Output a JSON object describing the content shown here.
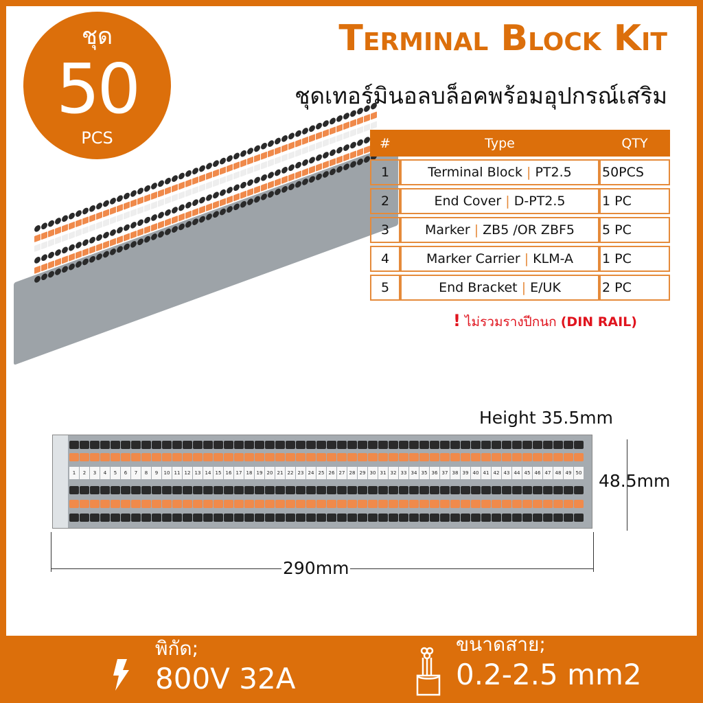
{
  "badge": {
    "thai": "ชุด",
    "count": "50",
    "unit": "PCS"
  },
  "title": "Terminal Block Kit",
  "subtitle": "ชุดเทอร์มินอลบล็อคพร้อมอุปกรณ์เสริม",
  "table": {
    "headers": [
      "#",
      "Type",
      "QTY"
    ],
    "rows": [
      {
        "n": "1",
        "name": "Terminal Block",
        "code": "PT2.5",
        "qty": "50PCS"
      },
      {
        "n": "2",
        "name": "End Cover",
        "code": "D-PT2.5",
        "qty": "1 PC"
      },
      {
        "n": "3",
        "name": "Marker",
        "code": "ZB5 /OR ZBF5",
        "qty": "5 PC"
      },
      {
        "n": "4",
        "name": "Marker Carrier",
        "code": "KLM-A",
        "qty": "1 PC"
      },
      {
        "n": "5",
        "name": "End  Bracket",
        "code": "E/UK",
        "qty": "2 PC"
      }
    ],
    "separator": "|"
  },
  "note": {
    "icon": "exclamation-icon",
    "text": "ไม่รวมรางปีกนก",
    "highlight": "(DIN RAIL)"
  },
  "dimensions": {
    "height": "Height 35.5mm",
    "depth": "48.5mm",
    "length": "290mm"
  },
  "marker_count": 50,
  "specs": [
    {
      "icon": "lightning-icon",
      "label": "พิกัด;",
      "value": "800V 32A"
    },
    {
      "icon": "wire-icon",
      "label": "ขนาดสาย;",
      "value": "0.2-2.5 mm2"
    }
  ],
  "colors": {
    "brand": "#dc6f0b",
    "accent_text": "#e0141e",
    "terminal_orange": "#f08a4b",
    "terminal_gray": "#a5abb0"
  }
}
